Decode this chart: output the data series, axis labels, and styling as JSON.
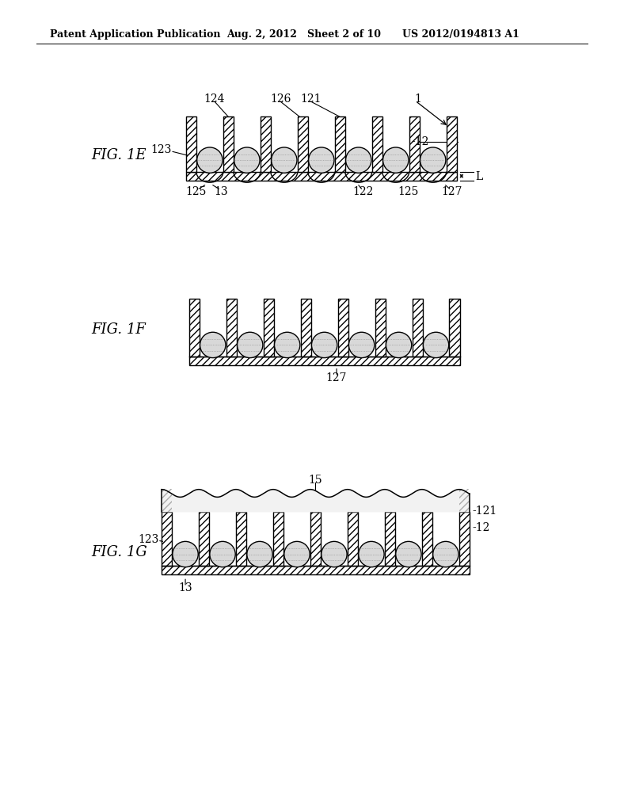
{
  "bg_color": "#ffffff",
  "header_left": "Patent Application Publication",
  "header_mid": "Aug. 2, 2012   Sheet 2 of 10",
  "header_right": "US 2012/0194813 A1",
  "fig1e_label": "FIG. 1E",
  "fig1f_label": "FIG. 1F",
  "fig1g_label": "FIG. 1G",
  "ann_fs": 10,
  "label_fs": 13,
  "header_fs": 9
}
